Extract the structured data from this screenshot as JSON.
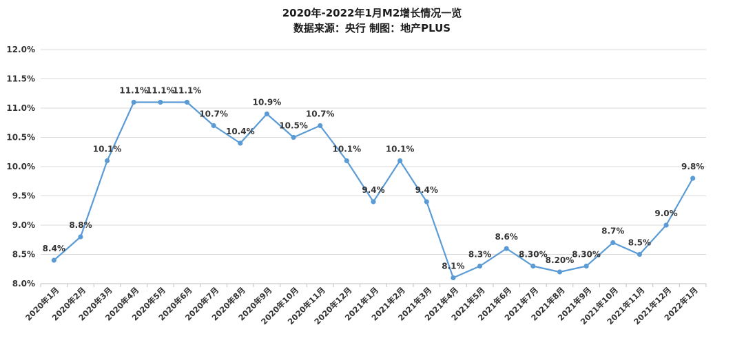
{
  "title": "2020年-2022年1月M2增长情况一览",
  "subtitle": "数据来源：央行 制图：地产PLUS",
  "colors": {
    "line": "#5b9bd5",
    "marker": "#5b9bd5",
    "grid": "#d9d9d9",
    "axis": "#bfbfbf"
  },
  "chart_data": {
    "type": "line",
    "title": "2020年-2022年1月M2增长情况一览",
    "subtitle": "数据来源：央行 制图：地产PLUS",
    "xlabel": "",
    "ylabel": "",
    "ylim": [
      8.0,
      12.0
    ],
    "yticks": [
      "8.0%",
      "8.5%",
      "9.0%",
      "9.5%",
      "10.0%",
      "10.5%",
      "11.0%",
      "11.5%",
      "12.0%"
    ],
    "grid": true,
    "legend": "none",
    "categories": [
      "2020年1月",
      "2020年2月",
      "2020年3月",
      "2020年4月",
      "2020年5月",
      "2020年6月",
      "2020年7月",
      "2020年8月",
      "2020年9月",
      "2020年10月",
      "2020年11月",
      "2020年12月",
      "2021年1月",
      "2021年2月",
      "2021年3月",
      "2021年4月",
      "2021年5月",
      "2021年6月",
      "2021年7月",
      "2021年8月",
      "2021年9月",
      "2021年10月",
      "2021年11月",
      "2021年12月",
      "2022年1月"
    ],
    "values": [
      8.4,
      8.8,
      10.1,
      11.1,
      11.1,
      11.1,
      10.7,
      10.4,
      10.9,
      10.5,
      10.7,
      10.1,
      9.4,
      10.1,
      9.4,
      8.1,
      8.3,
      8.6,
      8.3,
      8.2,
      8.3,
      8.7,
      8.5,
      9.0,
      9.8
    ],
    "data_labels": [
      "8.4%",
      "8.8%",
      "10.1%",
      "11.1%",
      "11.1%",
      "11.1%",
      "10.7%",
      "10.4%",
      "10.9%",
      "10.5%",
      "10.7%",
      "10.1%",
      "9.4%",
      "10.1%",
      "9.4%",
      "8.1%",
      "8.3%",
      "8.6%",
      "8.30%",
      "8.20%",
      "8.30%",
      "8.7%",
      "8.5%",
      "9.0%",
      "9.8%"
    ]
  }
}
